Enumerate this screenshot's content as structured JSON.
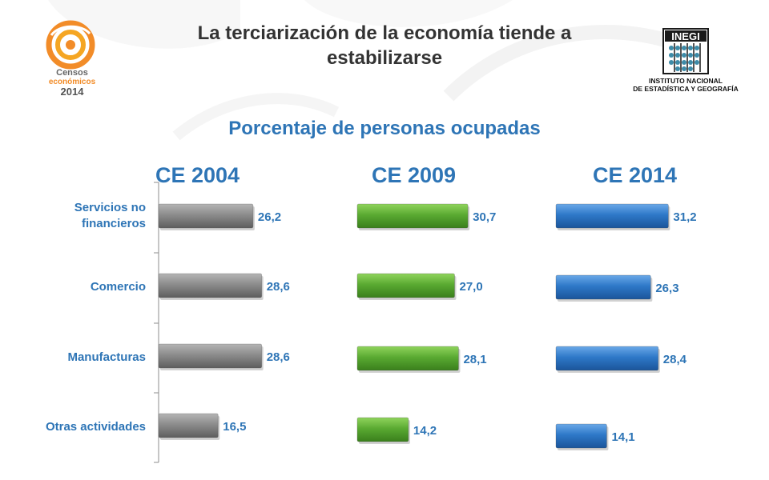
{
  "header": {
    "title_line1": "La terciarización de la economía tiende a",
    "title_line2": "estabilizarse"
  },
  "logo_left": {
    "line1": "Censos",
    "line2": "económicos",
    "line3": "2014",
    "color": "#f28c28"
  },
  "logo_right": {
    "acronym": "INEGI",
    "line1": "INSTITUTO NACIONAL",
    "line2": "DE ESTADÍSTICA Y GEOGRAFÍA"
  },
  "chart_data": {
    "type": "bar",
    "orientation": "horizontal",
    "title": "Porcentaje de personas ocupadas",
    "categories": [
      "Servicios no financieros",
      "Comercio",
      "Manufacturas",
      "Otras actividades"
    ],
    "category_lines": [
      [
        "Servicios no",
        "financieros"
      ],
      [
        "Comercio"
      ],
      [
        "Manufacturas"
      ],
      [
        "Otras actividades"
      ]
    ],
    "series": [
      {
        "name": "CE 2004",
        "values": [
          26.2,
          28.6,
          28.6,
          16.5
        ],
        "labels": [
          "26,2",
          "28,6",
          "28,6",
          "16,5"
        ],
        "color": "#808080"
      },
      {
        "name": "CE 2009",
        "values": [
          30.7,
          27.0,
          28.1,
          14.2
        ],
        "labels": [
          "30,7",
          "27,0",
          "28,1",
          "14,2"
        ],
        "color": "#5aaa32"
      },
      {
        "name": "CE 2014",
        "values": [
          31.2,
          26.3,
          28.4,
          14.1
        ],
        "labels": [
          "31,2",
          "26,3",
          "28,4",
          "14,1"
        ],
        "color": "#2e78c8"
      }
    ],
    "label_color": "#2e75b6",
    "grid": false,
    "legend": "none"
  }
}
